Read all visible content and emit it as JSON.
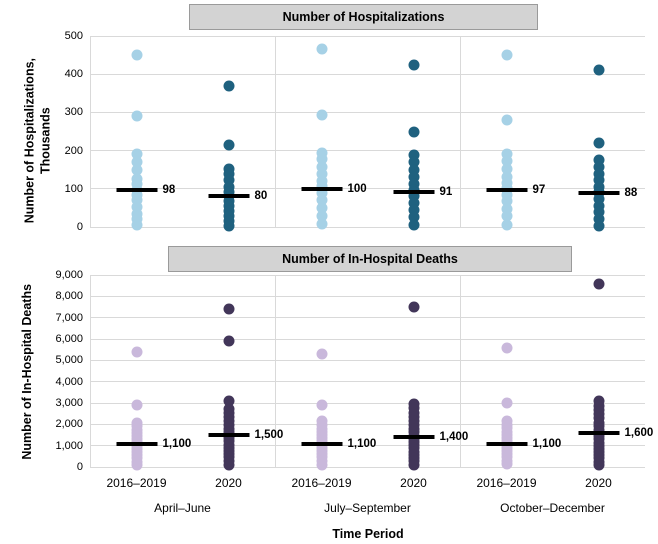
{
  "chart_data": {
    "type": "scatter",
    "description": "Strip plots of hospitalizations and in-hospital deaths by quarter, 2016-2019 vs 2020, with median markers",
    "colors": {
      "light_blue": "#a6d1e6",
      "dark_blue": "#1f617f",
      "light_purple": "#c9b8db",
      "dark_purple": "#423659",
      "gridline": "#d9d9d9",
      "header_bg": "#d3d3d3",
      "header_border": "#9a9a9a",
      "median": "#000000"
    },
    "panels": [
      {
        "title": "Number of Hospitalizations",
        "ylabel_lines": [
          "Number of Hospitalizations,",
          "Thousands"
        ],
        "ymax": 500,
        "ytick_values": [
          500,
          400,
          300,
          200,
          100,
          0
        ],
        "ytick_labels": [
          "500",
          "400",
          "300",
          "200",
          "100",
          "0"
        ],
        "columns": [
          {
            "group": "April–June",
            "period": "2016–2019",
            "color": "light_blue",
            "median": 98,
            "median_label": "98",
            "values": [
              450,
              290,
              190,
              170,
              148,
              125,
              112,
              98,
              85,
              70,
              52,
              35,
              20,
              5
            ]
          },
          {
            "group": "April–June",
            "period": "2020",
            "color": "dark_blue",
            "median": 80,
            "median_label": "80",
            "values": [
              370,
              215,
              152,
              138,
              122,
              105,
              92,
              80,
              68,
              55,
              42,
              28,
              15,
              3
            ]
          },
          {
            "group": "July–September",
            "period": "2016–2019",
            "color": "light_blue",
            "median": 100,
            "median_label": "100",
            "values": [
              465,
              293,
              195,
              178,
              158,
              138,
              120,
              108,
              100,
              88,
              70,
              50,
              30,
              8
            ]
          },
          {
            "group": "July–September",
            "period": "2020",
            "color": "dark_blue",
            "median": 91,
            "median_label": "91",
            "values": [
              425,
              250,
              188,
              170,
              150,
              130,
              112,
              98,
              91,
              80,
              62,
              45,
              25,
              5
            ]
          },
          {
            "group": "October–December",
            "period": "2016–2019",
            "color": "light_blue",
            "median": 97,
            "median_label": "97",
            "values": [
              450,
              280,
              190,
              172,
              152,
              132,
              115,
              103,
              97,
              85,
              68,
              48,
              28,
              6
            ]
          },
          {
            "group": "October–December",
            "period": "2020",
            "color": "dark_blue",
            "median": 88,
            "median_label": "88",
            "values": [
              412,
              220,
              175,
              158,
              140,
              122,
              105,
              92,
              88,
              72,
              55,
              38,
              20,
              3
            ]
          }
        ]
      },
      {
        "title": "Number of In-Hospital Deaths",
        "ylabel_lines": [
          "Number of In-Hospital Deaths",
          ""
        ],
        "ymax": 9000,
        "ytick_values": [
          9000,
          8000,
          7000,
          6000,
          5000,
          4000,
          3000,
          2000,
          1000,
          0
        ],
        "ytick_labels": [
          "9,000",
          "8,000",
          "7,000",
          "6,000",
          "5,000",
          "4,000",
          "3,000",
          "2,000",
          "1,000",
          "0"
        ],
        "columns": [
          {
            "group": "April–June",
            "period": "2016–2019",
            "color": "light_purple",
            "median": 1100,
            "median_label": "1,100",
            "values": [
              5400,
              2900,
              2050,
              1900,
              1750,
              1600,
              1450,
              1300,
              1150,
              1000,
              850,
              700,
              550,
              400,
              250,
              100
            ]
          },
          {
            "group": "April–June",
            "period": "2020",
            "color": "dark_purple",
            "median": 1500,
            "median_label": "1,500",
            "values": [
              7400,
              5900,
              3100,
              2700,
              2520,
              2340,
              2160,
              1980,
              1800,
              1640,
              1500,
              1350,
              1200,
              1050,
              900,
              750,
              600,
              450,
              300,
              100
            ]
          },
          {
            "group": "July–September",
            "period": "2016–2019",
            "color": "light_purple",
            "median": 1100,
            "median_label": "1,100",
            "values": [
              5300,
              2900,
              2150,
              1950,
              1800,
              1650,
              1500,
              1350,
              1200,
              1050,
              900,
              750,
              600,
              450,
              300,
              100
            ]
          },
          {
            "group": "July–September",
            "period": "2020",
            "color": "dark_purple",
            "median": 1400,
            "median_label": "1,400",
            "values": [
              7500,
              2950,
              2750,
              2550,
              2350,
              2150,
              1950,
              1780,
              1620,
              1470,
              1320,
              1170,
              1020,
              870,
              720,
              570,
              420,
              270,
              100
            ]
          },
          {
            "group": "October–December",
            "period": "2016–2019",
            "color": "light_purple",
            "median": 1100,
            "median_label": "1,100",
            "values": [
              5600,
              3000,
              2170,
              1980,
              1820,
              1660,
              1500,
              1350,
              1200,
              1050,
              900,
              750,
              600,
              450,
              300,
              120
            ]
          },
          {
            "group": "October–December",
            "period": "2020",
            "color": "dark_purple",
            "median": 1600,
            "median_label": "1,600",
            "values": [
              8600,
              3080,
              2880,
              2680,
              2480,
              2280,
              2080,
              1900,
              1740,
              1590,
              1440,
              1290,
              1140,
              990,
              840,
              690,
              540,
              400,
              250,
              80
            ]
          }
        ]
      }
    ],
    "x_axis": {
      "period_labels": [
        "2016–2019",
        "2020",
        "2016–2019",
        "2020",
        "2016–2019",
        "2020"
      ],
      "group_labels": [
        "April–June",
        "July–September",
        "October–December"
      ],
      "title": "Time Period"
    }
  }
}
